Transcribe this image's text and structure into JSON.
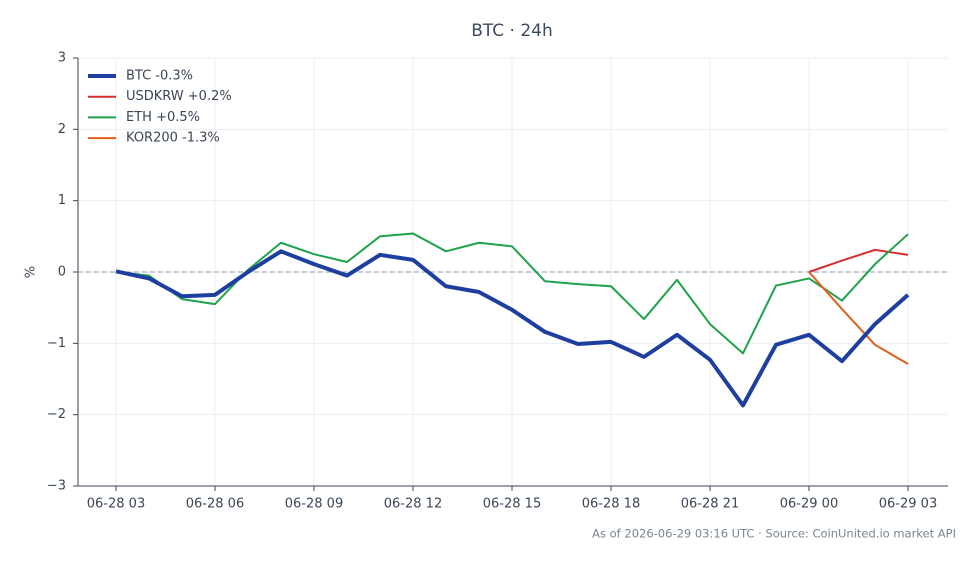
{
  "chart_data": {
    "type": "line",
    "title": "BTC · 24h",
    "y_label": "%",
    "footer": "As of 2026-06-29 03:16 UTC · Source: CoinUnited.io market API",
    "x": [
      "06-28 03",
      "06-28 04",
      "06-28 05",
      "06-28 06",
      "06-28 07",
      "06-28 08",
      "06-28 09",
      "06-28 10",
      "06-28 11",
      "06-28 12",
      "06-28 13",
      "06-28 14",
      "06-28 15",
      "06-28 16",
      "06-28 17",
      "06-28 18",
      "06-28 19",
      "06-28 20",
      "06-28 21",
      "06-28 22",
      "06-28 23",
      "06-29 00",
      "06-29 01",
      "06-29 02",
      "06-29 03"
    ],
    "xticks": [
      "06-28 03",
      "06-28 06",
      "06-28 09",
      "06-28 12",
      "06-28 15",
      "06-28 18",
      "06-28 21",
      "06-29 00",
      "06-29 03"
    ],
    "ylim": [
      -3,
      3
    ],
    "yticks": [
      {
        "value": -3,
        "label": "−3"
      },
      {
        "value": -2,
        "label": "−2"
      },
      {
        "value": -1,
        "label": "−1"
      },
      0,
      1,
      2,
      3
    ],
    "grid": true,
    "reference_line": 0,
    "legend": "upper-left",
    "series": [
      {
        "name": "BTC -0.3%",
        "color": "#1f3fa0",
        "width": 4,
        "values": [
          0.01,
          -0.09,
          -0.34,
          -0.32,
          0.0,
          0.29,
          0.11,
          -0.05,
          0.24,
          0.17,
          -0.2,
          -0.28,
          -0.53,
          -0.84,
          -1.01,
          -0.98,
          -1.19,
          -0.88,
          -1.23,
          -1.87,
          -1.02,
          -0.88,
          -1.25,
          -0.73,
          -0.32
        ]
      },
      {
        "name": "USDKRW +0.2%",
        "color": "#d33030",
        "width": 2,
        "values": [
          null,
          null,
          null,
          null,
          null,
          null,
          null,
          null,
          null,
          null,
          null,
          null,
          null,
          null,
          null,
          null,
          null,
          null,
          null,
          null,
          null,
          0,
          0.16,
          0.31,
          0.24
        ]
      },
      {
        "name": "ETH +0.5%",
        "color": "#1fa34a",
        "width": 2,
        "values": [
          0,
          -0.05,
          -0.38,
          -0.45,
          0.03,
          0.41,
          0.25,
          0.14,
          0.5,
          0.54,
          0.29,
          0.41,
          0.36,
          -0.13,
          -0.17,
          -0.2,
          -0.66,
          -0.11,
          -0.73,
          -1.14,
          -0.19,
          -0.09,
          -0.4,
          0.11,
          0.53
        ]
      },
      {
        "name": "KOR200 -1.3%",
        "color": "#e0601a",
        "width": 2,
        "values": [
          null,
          null,
          null,
          null,
          null,
          null,
          null,
          null,
          null,
          null,
          null,
          null,
          null,
          null,
          null,
          null,
          null,
          null,
          null,
          null,
          null,
          0,
          -0.52,
          -1.02,
          -1.29
        ]
      }
    ]
  }
}
